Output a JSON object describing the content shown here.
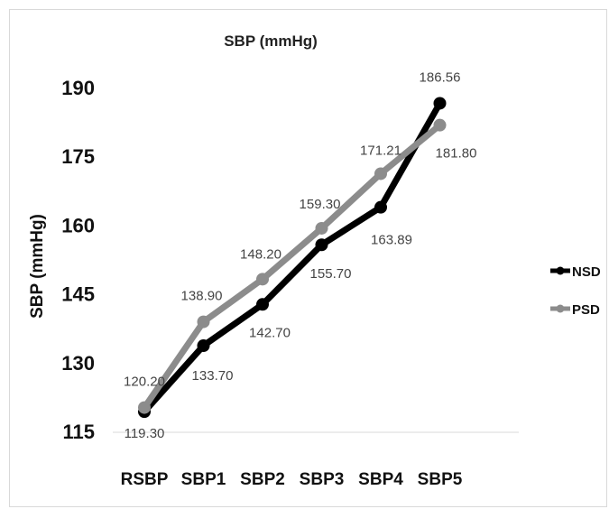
{
  "chart_data": {
    "type": "line",
    "title": "SBP (mmHg)",
    "xlabel": "",
    "ylabel": "SBP (mmHg)",
    "categories": [
      "RSBP",
      "SBP1",
      "SBP2",
      "SBP3",
      "SBP4",
      "SBP5"
    ],
    "yticks": [
      "115",
      "130",
      "145",
      "160",
      "175",
      "190"
    ],
    "ylim": [
      115,
      190
    ],
    "grid": false,
    "legend_position": "right",
    "series": [
      {
        "name": "NSD",
        "color": "#000000",
        "values": [
          119.3,
          133.7,
          142.7,
          155.7,
          163.89,
          186.56
        ],
        "labels": [
          "119.30",
          "133.70",
          "142.70",
          "155.70",
          "163.89",
          "186.56"
        ]
      },
      {
        "name": "PSD",
        "color": "#8c8c8c",
        "values": [
          120.2,
          138.9,
          148.2,
          159.3,
          171.21,
          181.8
        ],
        "labels": [
          "120.20",
          "138.90",
          "148.20",
          "159.30",
          "171.21",
          "181.80"
        ]
      }
    ]
  }
}
